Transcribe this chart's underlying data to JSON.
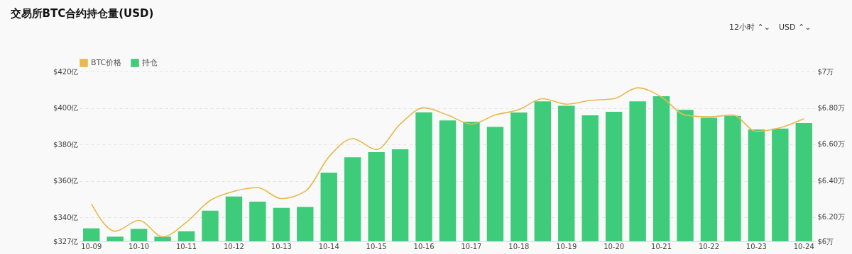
{
  "chart_data": {
    "type": "bar",
    "title": "交易所BTC合约持仓量(USD)",
    "annotations": [
      "12小时 ⌃⌄",
      "USD ⌃⌄"
    ],
    "categories": [
      "10-09",
      null,
      "10-10",
      null,
      "10-11",
      null,
      "10-12",
      null,
      "10-13",
      null,
      "10-14",
      null,
      "10-15",
      null,
      "10-16",
      null,
      "10-17",
      null,
      "10-18",
      null,
      "10-19",
      null,
      "10-20",
      null,
      "10-21",
      null,
      "10-22",
      null,
      "10-23",
      null,
      "10-24"
    ],
    "series": [
      {
        "name": "BTC价格",
        "type": "line",
        "axis": "y2",
        "color": "#e8b84a",
        "values": [
          6.27,
          6.12,
          6.18,
          6.09,
          6.17,
          6.29,
          6.34,
          6.36,
          6.3,
          6.34,
          6.53,
          6.63,
          6.57,
          6.71,
          6.8,
          6.76,
          6.71,
          6.76,
          6.79,
          6.85,
          6.82,
          6.84,
          6.85,
          6.91,
          6.86,
          6.76,
          6.75,
          6.76,
          6.67,
          6.69,
          6.74
        ]
      },
      {
        "name": "持仓",
        "color": "#3ecc7a",
        "values": [
          334.1,
          329.5,
          333.8,
          329.5,
          332.4,
          343.8,
          351.5,
          348.7,
          345.3,
          345.8,
          364.6,
          373.0,
          375.8,
          377.4,
          397.6,
          393.2,
          392.5,
          389.7,
          397.5,
          403.6,
          401.2,
          396.0,
          397.9,
          403.6,
          406.4,
          399.0,
          394.6,
          395.7,
          388.2,
          388.7,
          391.7
        ]
      }
    ],
    "ylim": [
      327,
      420
    ],
    "yticks": [
      {
        "value": 327,
        "label": "$327亿"
      },
      {
        "value": 340,
        "label": "$340亿"
      },
      {
        "value": 360,
        "label": "$360亿"
      },
      {
        "value": 380,
        "label": "$380亿"
      },
      {
        "value": 400,
        "label": "$400亿"
      },
      {
        "value": 420,
        "label": "$420亿"
      }
    ],
    "y2lim": [
      6.065,
      7
    ],
    "y2ticks": [
      {
        "value": 6.065,
        "label": "$6万"
      },
      {
        "value": 6.2,
        "label": "$6.20万"
      },
      {
        "value": 6.4,
        "label": "$6.40万"
      },
      {
        "value": 6.6,
        "label": "$6.60万"
      },
      {
        "value": 6.8,
        "label": "$6.80万"
      },
      {
        "value": 7,
        "label": "$7万"
      }
    ],
    "grid": "y",
    "legend": "top",
    "line_style": "solid",
    "marker": "none"
  }
}
